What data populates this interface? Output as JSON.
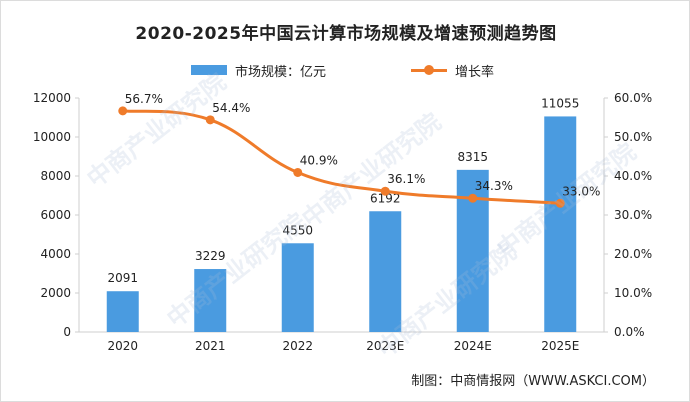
{
  "chart_data": {
    "type": "bar",
    "title": "2020-2025年中国云计算市场规模及增速预测趋势图",
    "categories": [
      "2020",
      "2021",
      "2022",
      "2023E",
      "2024E",
      "2025E"
    ],
    "series": [
      {
        "name": "市场规模：亿元",
        "type": "bar",
        "axis": "left",
        "values": [
          2091,
          3229,
          4550,
          6192,
          8315,
          11055
        ],
        "labels": [
          "2091",
          "3229",
          "4550",
          "6192",
          "8315",
          "11055"
        ]
      },
      {
        "name": "增长率",
        "type": "line",
        "axis": "right",
        "values": [
          56.7,
          54.4,
          40.9,
          36.1,
          34.3,
          33.0
        ],
        "labels": [
          "56.7%",
          "54.4%",
          "40.9%",
          "36.1%",
          "34.3%",
          "33.0%"
        ]
      }
    ],
    "left_axis": {
      "ylim": [
        0,
        12000
      ],
      "ticks": [
        "0",
        "2000",
        "4000",
        "6000",
        "8000",
        "10000",
        "12000"
      ]
    },
    "right_axis": {
      "ylim": [
        0,
        60
      ],
      "ticks": [
        "0.0%",
        "10.0%",
        "20.0%",
        "30.0%",
        "40.0%",
        "50.0%",
        "60.0%"
      ]
    },
    "grid": false,
    "legend_position": "top-center"
  },
  "colors": {
    "bar": "#4a9be0",
    "line": "#ef7b2a",
    "text": "#222222",
    "axis": "#cfcfcf"
  },
  "source": "制图：中商情报网（WWW.ASKCI.COM）",
  "watermark": "中商产业研究院"
}
